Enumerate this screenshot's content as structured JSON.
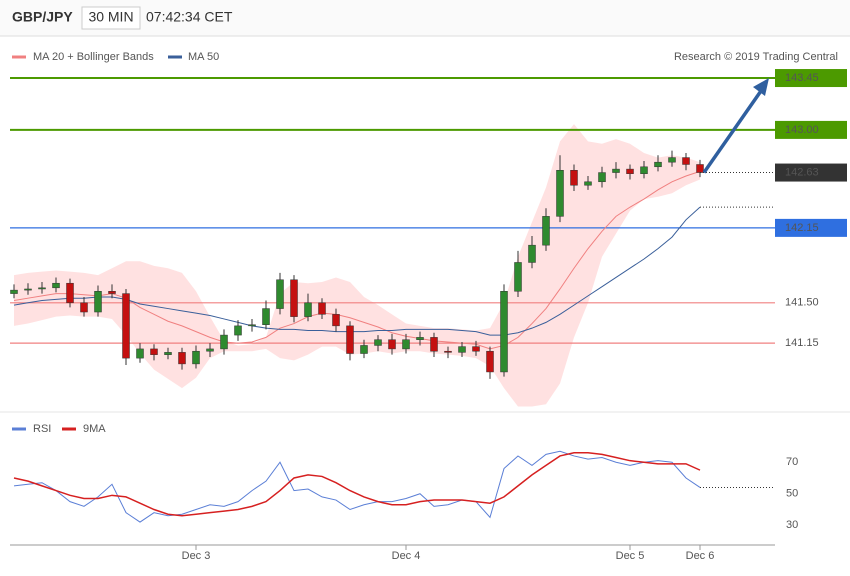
{
  "header": {
    "symbol": "GBP/JPY",
    "timeframe": "30 MIN",
    "time": "07:42:34 CET"
  },
  "chart_data": [
    {
      "type": "candlestick",
      "credit": "Research © 2019 Trading Central",
      "up_color": "#2f8a2f",
      "down_color": "#c41010",
      "ylim": [
        140.57,
        143.78
      ],
      "open": [
        141.58,
        141.61,
        141.62,
        141.63,
        141.67,
        141.5,
        141.42,
        141.6,
        141.58,
        141.02,
        141.1,
        141.05,
        141.07,
        140.97,
        141.08,
        141.1,
        141.22,
        141.3,
        141.31,
        141.45,
        141.7,
        141.38,
        141.5,
        141.4,
        141.3,
        141.06,
        141.13,
        141.18,
        141.1,
        141.18,
        141.2,
        141.08,
        141.07,
        141.12,
        141.08,
        140.9,
        141.6,
        141.85,
        142.0,
        142.25,
        142.65,
        142.52,
        142.55,
        142.63,
        142.66,
        142.62,
        142.68,
        142.72,
        142.76,
        142.7
      ],
      "high": [
        141.66,
        141.67,
        141.68,
        141.72,
        141.71,
        141.55,
        141.65,
        141.66,
        141.62,
        141.15,
        141.14,
        141.11,
        141.11,
        141.13,
        141.15,
        141.27,
        141.35,
        141.36,
        141.52,
        141.76,
        141.74,
        141.58,
        141.54,
        141.45,
        141.34,
        141.18,
        141.22,
        141.23,
        141.23,
        141.25,
        141.24,
        141.12,
        141.16,
        141.17,
        141.12,
        141.66,
        141.95,
        142.08,
        142.32,
        142.78,
        142.7,
        142.6,
        142.68,
        142.72,
        142.7,
        142.73,
        142.78,
        142.82,
        142.8,
        142.74
      ],
      "low": [
        141.54,
        141.57,
        141.58,
        141.59,
        141.46,
        141.38,
        141.38,
        141.54,
        140.96,
        140.98,
        141.0,
        141.01,
        140.92,
        140.93,
        141.03,
        141.05,
        141.17,
        141.25,
        141.27,
        141.4,
        141.33,
        141.34,
        141.36,
        141.25,
        141.0,
        141.02,
        141.08,
        141.05,
        141.06,
        141.13,
        141.03,
        141.02,
        141.03,
        141.04,
        140.84,
        140.86,
        141.55,
        141.8,
        141.95,
        142.2,
        142.47,
        142.48,
        142.5,
        142.58,
        142.57,
        142.58,
        142.64,
        142.68,
        142.65,
        142.59
      ],
      "close": [
        141.61,
        141.62,
        141.63,
        141.67,
        141.5,
        141.42,
        141.6,
        141.58,
        141.02,
        141.1,
        141.05,
        141.07,
        140.97,
        141.08,
        141.1,
        141.22,
        141.3,
        141.31,
        141.45,
        141.7,
        141.38,
        141.5,
        141.4,
        141.3,
        141.06,
        141.13,
        141.18,
        141.1,
        141.18,
        141.2,
        141.08,
        141.07,
        141.12,
        141.08,
        140.9,
        141.6,
        141.85,
        142.0,
        142.25,
        142.65,
        142.52,
        142.55,
        142.63,
        142.66,
        142.62,
        142.68,
        142.72,
        142.76,
        142.7,
        142.63
      ],
      "bollinger": {
        "name": "MA 20 + Bollinger Bands",
        "color": "#f08080",
        "fill": "#ffd9d9",
        "upper": [
          141.74,
          141.76,
          141.77,
          141.78,
          141.77,
          141.76,
          141.74,
          141.8,
          141.86,
          141.86,
          141.82,
          141.8,
          141.76,
          141.6,
          141.38,
          141.17,
          141.13,
          141.14,
          141.2,
          141.58,
          141.68,
          141.67,
          141.68,
          141.72,
          141.68,
          141.55,
          141.48,
          141.4,
          141.32,
          141.3,
          141.28,
          141.28,
          141.27,
          141.26,
          141.28,
          141.5,
          141.9,
          142.2,
          142.5,
          142.9,
          143.05,
          142.9,
          142.88,
          142.92,
          142.88,
          142.8,
          142.76,
          142.78,
          142.76,
          142.72
        ],
        "middle": [
          141.52,
          141.54,
          141.56,
          141.58,
          141.58,
          141.57,
          141.56,
          141.58,
          141.54,
          141.46,
          141.4,
          141.34,
          141.3,
          141.25,
          141.2,
          141.16,
          141.15,
          141.16,
          141.2,
          141.28,
          141.32,
          141.38,
          141.41,
          141.4,
          141.37,
          141.33,
          141.29,
          141.24,
          141.21,
          141.19,
          141.17,
          141.16,
          141.15,
          141.14,
          141.1,
          141.13,
          141.2,
          141.32,
          141.45,
          141.62,
          141.8,
          141.97,
          142.12,
          142.25,
          142.33,
          142.4,
          142.48,
          142.55,
          142.6,
          142.64
        ],
        "lower": [
          141.3,
          141.32,
          141.35,
          141.38,
          141.39,
          141.38,
          141.38,
          141.36,
          141.22,
          141.06,
          140.92,
          140.84,
          140.76,
          140.85,
          141.02,
          141.08,
          141.08,
          141.08,
          141.1,
          141.02,
          141.0,
          141.05,
          141.12,
          141.12,
          141.05,
          141.06,
          141.08,
          141.06,
          141.08,
          141.08,
          141.06,
          141.05,
          141.04,
          141.02,
          140.95,
          140.76,
          140.6,
          140.6,
          140.62,
          140.8,
          141.2,
          141.5,
          141.9,
          142.1,
          142.3,
          142.4,
          142.42,
          142.45,
          142.52,
          142.57
        ]
      },
      "ma50": {
        "name": "MA 50",
        "color": "#3a5f9a",
        "values": [
          141.48,
          141.5,
          141.52,
          141.53,
          141.54,
          141.54,
          141.55,
          141.55,
          141.53,
          141.49,
          141.47,
          141.45,
          141.43,
          141.41,
          141.39,
          141.36,
          141.33,
          141.3,
          141.28,
          141.27,
          141.27,
          141.26,
          141.26,
          141.25,
          141.25,
          141.25,
          141.26,
          141.26,
          141.27,
          141.27,
          141.27,
          141.27,
          141.26,
          141.25,
          141.22,
          141.22,
          141.24,
          141.28,
          141.33,
          141.4,
          141.48,
          141.56,
          141.64,
          141.72,
          141.8,
          141.88,
          141.97,
          142.07,
          142.22,
          142.33
        ]
      },
      "levels": [
        {
          "value": 143.45,
          "color": "#4c9a00",
          "box": true
        },
        {
          "value": 143,
          "label": "143.00",
          "color": "#4c9a00",
          "box": true
        },
        {
          "value": 142.15,
          "color": "#2f6fe0",
          "box": true
        },
        {
          "value": 141.5,
          "label": "141.50",
          "color": "#f08080",
          "box": false
        },
        {
          "value": 141.15,
          "color": "#f08080",
          "box": false
        }
      ]
    },
    {
      "type": "line",
      "categories": [
        null,
        null,
        null,
        null,
        null,
        null,
        null,
        null,
        null,
        null,
        null,
        null,
        null,
        "Dec 3",
        null,
        null,
        null,
        null,
        null,
        null,
        null,
        null,
        null,
        null,
        null,
        null,
        null,
        null,
        "Dec 4",
        null,
        null,
        null,
        null,
        null,
        null,
        null,
        null,
        null,
        null,
        null,
        null,
        null,
        null,
        null,
        "Dec 5",
        null,
        null,
        null,
        null,
        "Dec 6"
      ],
      "ylim": [
        20,
        100
      ],
      "yticks": [
        30,
        50,
        70
      ],
      "series": [
        {
          "name": "RSI",
          "color": "#5b7fd6",
          "values": [
            55,
            56,
            57,
            52,
            45,
            42,
            48,
            56,
            38,
            32,
            38,
            36,
            37,
            40,
            43,
            42,
            45,
            52,
            58,
            70,
            52,
            53,
            48,
            46,
            40,
            43,
            45,
            45,
            47,
            50,
            42,
            43,
            46,
            45,
            35,
            66,
            74,
            68,
            75,
            77,
            74,
            72,
            73,
            70,
            68,
            70,
            71,
            70,
            60,
            54
          ]
        },
        {
          "name": "9MA",
          "color": "#d62020",
          "values": [
            60,
            58,
            55,
            52,
            49,
            47,
            47,
            49,
            48,
            44,
            40,
            37,
            36,
            37,
            38,
            39,
            40,
            42,
            45,
            52,
            60,
            62,
            61,
            57,
            52,
            48,
            45,
            43,
            43,
            45,
            46,
            46,
            46,
            45,
            44,
            48,
            55,
            62,
            68,
            74,
            76,
            76,
            75,
            73,
            71,
            70,
            69,
            69,
            69,
            65
          ]
        }
      ]
    }
  ]
}
